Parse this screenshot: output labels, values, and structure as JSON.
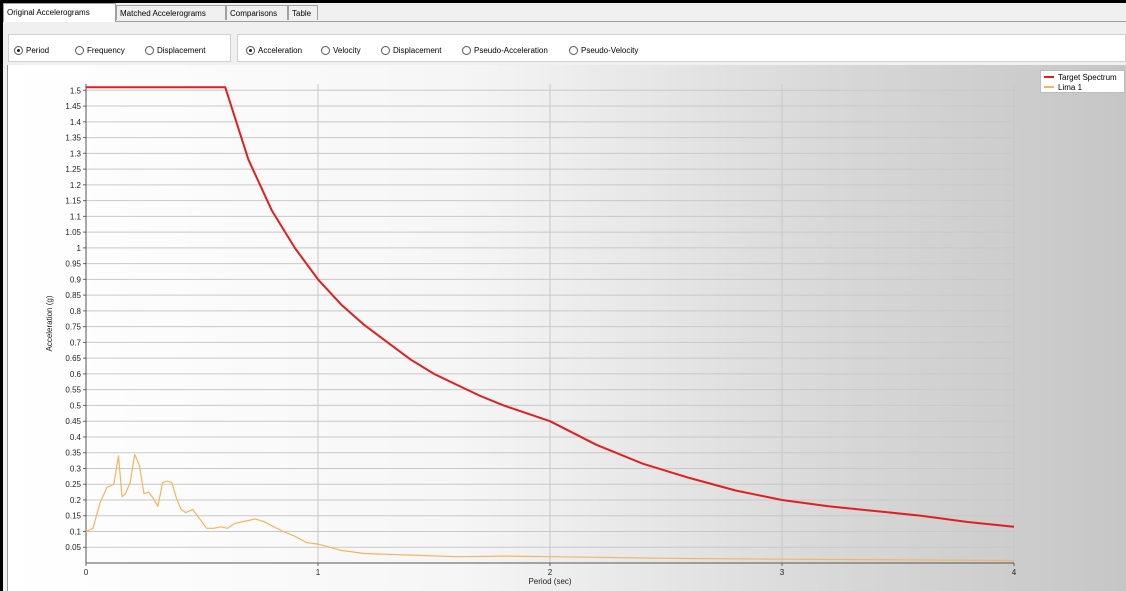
{
  "tabs": [
    {
      "label": "Original Accelerograms",
      "active": true
    },
    {
      "label": "Matched Accelerograms",
      "active": false
    },
    {
      "label": "Comparisons",
      "active": false
    },
    {
      "label": "Table",
      "active": false
    }
  ],
  "domain_options": {
    "items": [
      "Period",
      "Frequency",
      "Displacement"
    ],
    "selected": "Period"
  },
  "response_options": {
    "items": [
      "Acceleration",
      "Velocity",
      "Displacement",
      "Pseudo-Acceleration",
      "Pseudo-Velocity"
    ],
    "selected": "Acceleration"
  },
  "colors": {
    "target": "#e02020",
    "record": "#f5b560",
    "grid": "#c8c8c8"
  },
  "chart_data": {
    "type": "line",
    "xlabel": "Period (sec)",
    "ylabel": "Acceleration (g)",
    "xlim": [
      0,
      4
    ],
    "ylim": [
      0,
      1.52
    ],
    "xticks": [
      0,
      1,
      2,
      3,
      4
    ],
    "yticks": [
      0.05,
      0.1,
      0.15,
      0.2,
      0.25,
      0.3,
      0.35,
      0.4,
      0.45,
      0.5,
      0.55,
      0.6,
      0.65,
      0.7,
      0.75,
      0.8,
      0.85,
      0.9,
      0.95,
      1,
      1.05,
      1.1,
      1.15,
      1.2,
      1.25,
      1.3,
      1.35,
      1.4,
      1.45,
      1.5
    ],
    "grid": true,
    "legend_position": "right",
    "series": [
      {
        "name": "Target Spectrum",
        "x": [
          0,
          0.6,
          0.7,
          0.8,
          0.9,
          1.0,
          1.1,
          1.2,
          1.3,
          1.4,
          1.5,
          1.6,
          1.7,
          1.8,
          1.9,
          2.0,
          2.2,
          2.4,
          2.6,
          2.8,
          3.0,
          3.2,
          3.4,
          3.6,
          3.8,
          4.0
        ],
        "y": [
          1.51,
          1.51,
          1.28,
          1.12,
          1.0,
          0.9,
          0.82,
          0.755,
          0.7,
          0.645,
          0.6,
          0.565,
          0.53,
          0.5,
          0.475,
          0.45,
          0.375,
          0.315,
          0.27,
          0.23,
          0.2,
          0.18,
          0.165,
          0.15,
          0.13,
          0.115
        ]
      },
      {
        "name": "Lima 1",
        "x": [
          0,
          0.03,
          0.06,
          0.09,
          0.12,
          0.14,
          0.155,
          0.17,
          0.19,
          0.21,
          0.23,
          0.25,
          0.27,
          0.29,
          0.31,
          0.33,
          0.35,
          0.37,
          0.39,
          0.41,
          0.43,
          0.46,
          0.49,
          0.52,
          0.55,
          0.58,
          0.61,
          0.64,
          0.67,
          0.7,
          0.73,
          0.77,
          0.81,
          0.85,
          0.9,
          0.95,
          1.0,
          1.05,
          1.1,
          1.2,
          1.4,
          1.6,
          1.8,
          2.0,
          2.2,
          2.5,
          3.0,
          3.5,
          4.0
        ],
        "y": [
          0.1,
          0.11,
          0.19,
          0.24,
          0.25,
          0.34,
          0.21,
          0.22,
          0.255,
          0.345,
          0.31,
          0.22,
          0.225,
          0.205,
          0.18,
          0.255,
          0.26,
          0.255,
          0.205,
          0.17,
          0.16,
          0.17,
          0.14,
          0.11,
          0.11,
          0.115,
          0.11,
          0.125,
          0.13,
          0.135,
          0.14,
          0.13,
          0.115,
          0.1,
          0.085,
          0.065,
          0.06,
          0.05,
          0.04,
          0.03,
          0.025,
          0.02,
          0.022,
          0.02,
          0.018,
          0.015,
          0.012,
          0.01,
          0.008
        ]
      }
    ]
  }
}
